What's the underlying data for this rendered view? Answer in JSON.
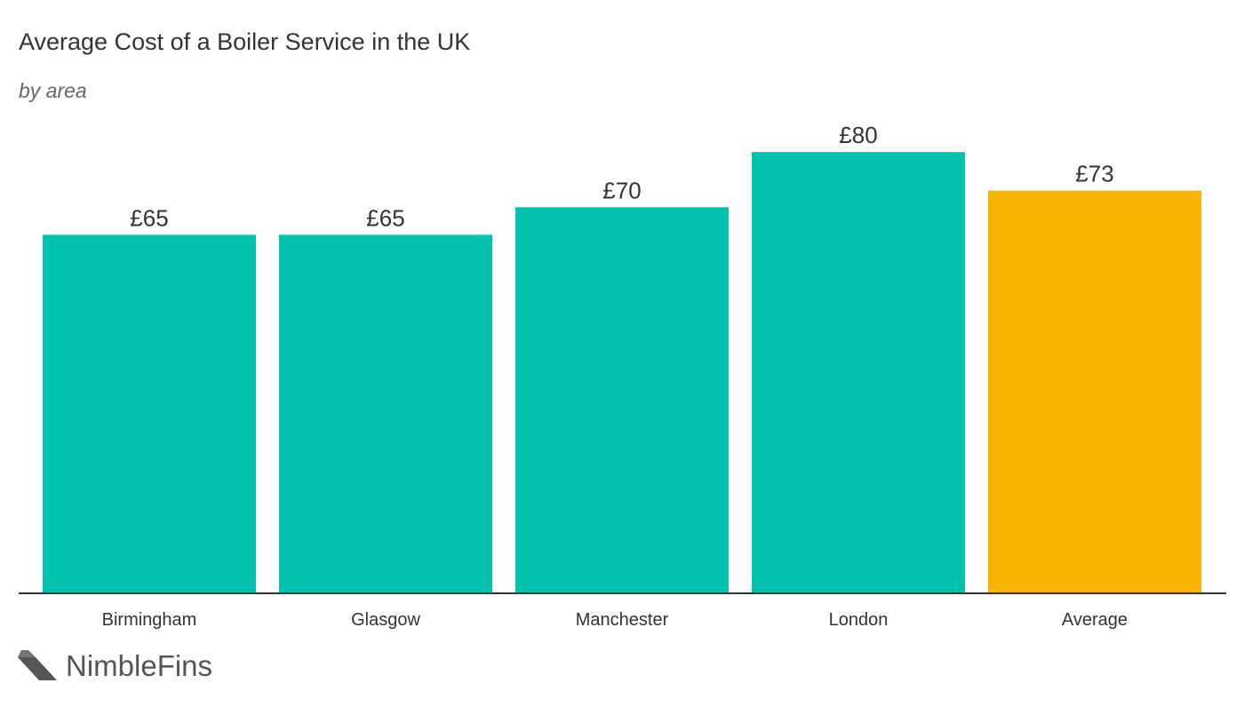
{
  "brand": {
    "name": "NimbleFins",
    "logo_icon": "nimblefins-chevron-icon"
  },
  "colors": {
    "primary_bar": "#00C2AE",
    "highlight_bar": "#F7B500",
    "axis": "#333333",
    "text": "#333333"
  },
  "chart_data": {
    "type": "bar",
    "title": "Average Cost of a Boiler Service in the UK",
    "subtitle": "by area",
    "categories": [
      "Birmingham",
      "Glasgow",
      "Manchester",
      "London",
      "Average"
    ],
    "values": [
      65,
      65,
      70,
      80,
      73
    ],
    "data_labels": [
      "£65",
      "£65",
      "£70",
      "£80",
      "£73"
    ],
    "highlight": [
      "Average"
    ],
    "xlabel": "",
    "ylabel": "",
    "ylim": [
      0,
      80
    ],
    "grid": false,
    "legend": "none"
  }
}
